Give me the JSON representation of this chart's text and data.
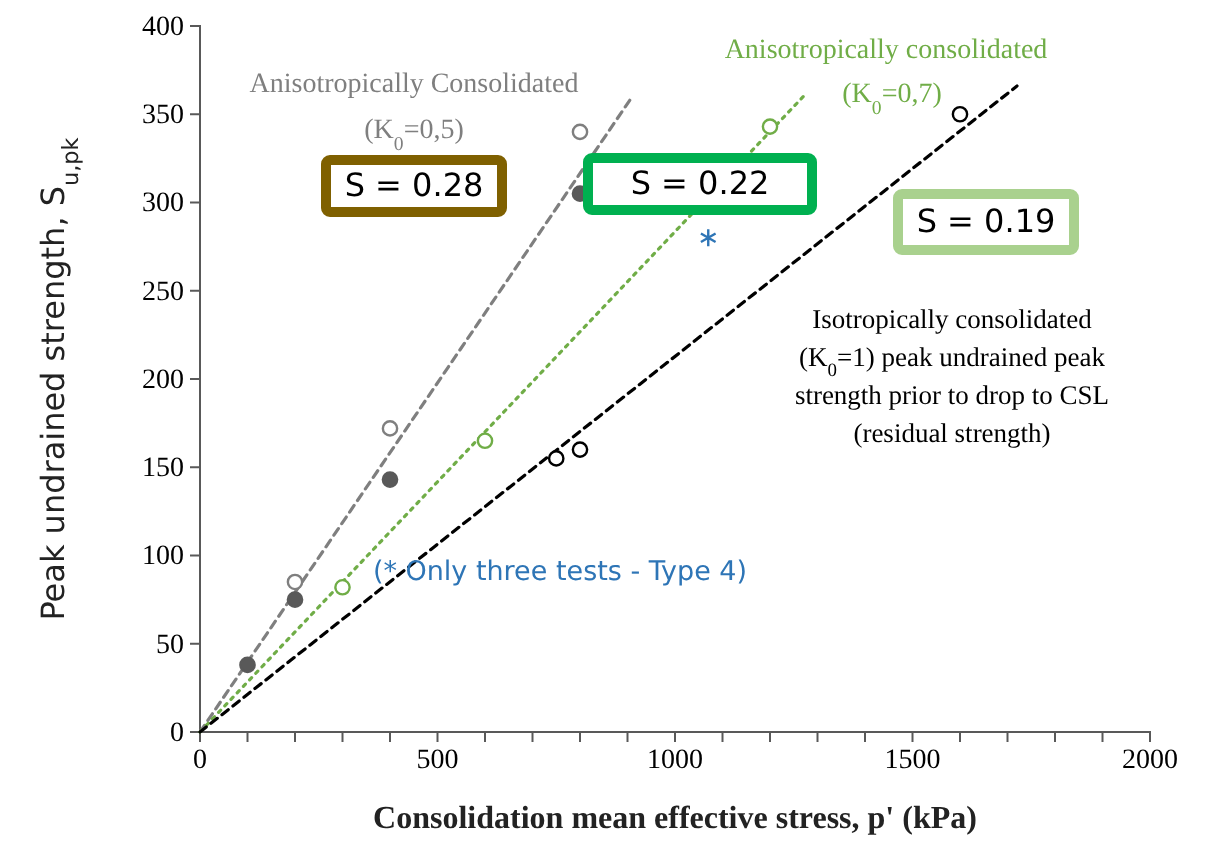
{
  "chart_data": {
    "type": "scatter",
    "xlabel": "Consolidation mean effective stress, p' (kPa)",
    "ylabel": "Peak undrained strength, S$_{u,pk}$",
    "xlim": [
      0,
      2000
    ],
    "ylim": [
      0,
      400
    ],
    "xticks": [
      0,
      {
        "value": 100,
        "label": null
      },
      {
        "value": 200,
        "label": null
      },
      {
        "value": 300,
        "label": null
      },
      {
        "value": 400,
        "label": null
      },
      500,
      {
        "value": 600,
        "label": null
      },
      {
        "value": 700,
        "label": null
      },
      {
        "value": 800,
        "label": null
      },
      {
        "value": 900,
        "label": null
      },
      1000,
      {
        "value": 1100,
        "label": null
      },
      {
        "value": 1200,
        "label": null
      },
      {
        "value": 1300,
        "label": null
      },
      {
        "value": 1400,
        "label": null
      },
      1500,
      {
        "value": 1600,
        "label": null
      },
      {
        "value": 1700,
        "label": null
      },
      {
        "value": 1800,
        "label": null
      },
      {
        "value": 1900,
        "label": null
      },
      2000
    ],
    "yticks": [
      0,
      50,
      100,
      150,
      200,
      250,
      300,
      350,
      400
    ],
    "grid": false,
    "series": [
      {
        "type": "line",
        "color": "#7f7f7f",
        "x": [
          0,
          910
        ],
        "values": [
          0,
          360
        ],
        "line_style": "dashed",
        "marker": "none"
      },
      {
        "type": "line",
        "color": "#70ad47",
        "x": [
          0,
          1270
        ],
        "values": [
          0,
          360
        ],
        "line_style": "dotted",
        "marker": "none"
      },
      {
        "type": "line",
        "color": "#000000",
        "x": [
          0,
          1720
        ],
        "values": [
          0,
          366
        ],
        "line_style": "dashed",
        "marker": "none"
      },
      {
        "color": "#7f7f7f",
        "x": [
          200,
          400,
          800
        ],
        "values": [
          85,
          172,
          340
        ],
        "marker": "circle"
      },
      {
        "color": "#595959",
        "x": [
          100,
          200,
          400,
          800
        ],
        "values": [
          38,
          75,
          143,
          305
        ],
        "marker": "circle"
      },
      {
        "color": "#70ad47",
        "x": [
          300,
          600,
          1200
        ],
        "values": [
          82,
          165,
          343
        ],
        "marker": "circle"
      },
      {
        "color": "#000000",
        "x": [
          750,
          800,
          1600
        ],
        "values": [
          155,
          160,
          350
        ],
        "marker": "circle"
      },
      {
        "color": "#2e75b6",
        "x": [
          1070
        ],
        "values": [
          280
        ],
        "marker": "cross"
      }
    ],
    "annotations": [
      "Anisotropically Consolidated",
      "(K$_{0}$=0,5)",
      "S = 0.28",
      "Anisotropically consolidated",
      "(K$_{0}$=0,7)",
      "S = 0.22",
      "S = 0.19",
      "Isotropically consolidated (K$_{0}$=1) peak undrained peak strength prior to drop to CSL (residual strength)",
      "(* Only three tests - Type 4)"
    ]
  }
}
